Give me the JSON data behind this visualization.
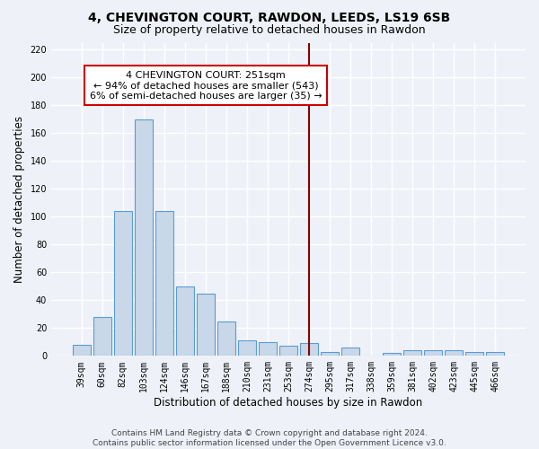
{
  "title1": "4, CHEVINGTON COURT, RAWDON, LEEDS, LS19 6SB",
  "title2": "Size of property relative to detached houses in Rawdon",
  "xlabel": "Distribution of detached houses by size in Rawdon",
  "ylabel": "Number of detached properties",
  "categories": [
    "39sqm",
    "60sqm",
    "82sqm",
    "103sqm",
    "124sqm",
    "146sqm",
    "167sqm",
    "188sqm",
    "210sqm",
    "231sqm",
    "253sqm",
    "274sqm",
    "295sqm",
    "317sqm",
    "338sqm",
    "359sqm",
    "381sqm",
    "402sqm",
    "423sqm",
    "445sqm",
    "466sqm"
  ],
  "values": [
    8,
    28,
    104,
    170,
    104,
    50,
    45,
    25,
    11,
    10,
    7,
    9,
    3,
    6,
    0,
    2,
    4,
    4,
    4,
    3,
    3
  ],
  "bar_color": "#c8d8e8",
  "bar_edge_color": "#5b9bd5",
  "bg_color": "#eef2f8",
  "grid_color": "#ffffff",
  "vline_x": 11.0,
  "vline_color": "#8b0000",
  "annotation_text": "4 CHEVINGTON COURT: 251sqm\n← 94% of detached houses are smaller (543)\n6% of semi-detached houses are larger (35) →",
  "annotation_box_color": "#ffffff",
  "annotation_box_edge": "#cc0000",
  "ylim": [
    0,
    225
  ],
  "yticks": [
    0,
    20,
    40,
    60,
    80,
    100,
    120,
    140,
    160,
    180,
    200,
    220
  ],
  "footer": "Contains HM Land Registry data © Crown copyright and database right 2024.\nContains public sector information licensed under the Open Government Licence v3.0.",
  "title_fontsize": 10,
  "subtitle_fontsize": 9,
  "tick_fontsize": 7,
  "ylabel_fontsize": 8.5,
  "xlabel_fontsize": 8.5,
  "annot_fontsize": 8,
  "footer_fontsize": 6.5
}
